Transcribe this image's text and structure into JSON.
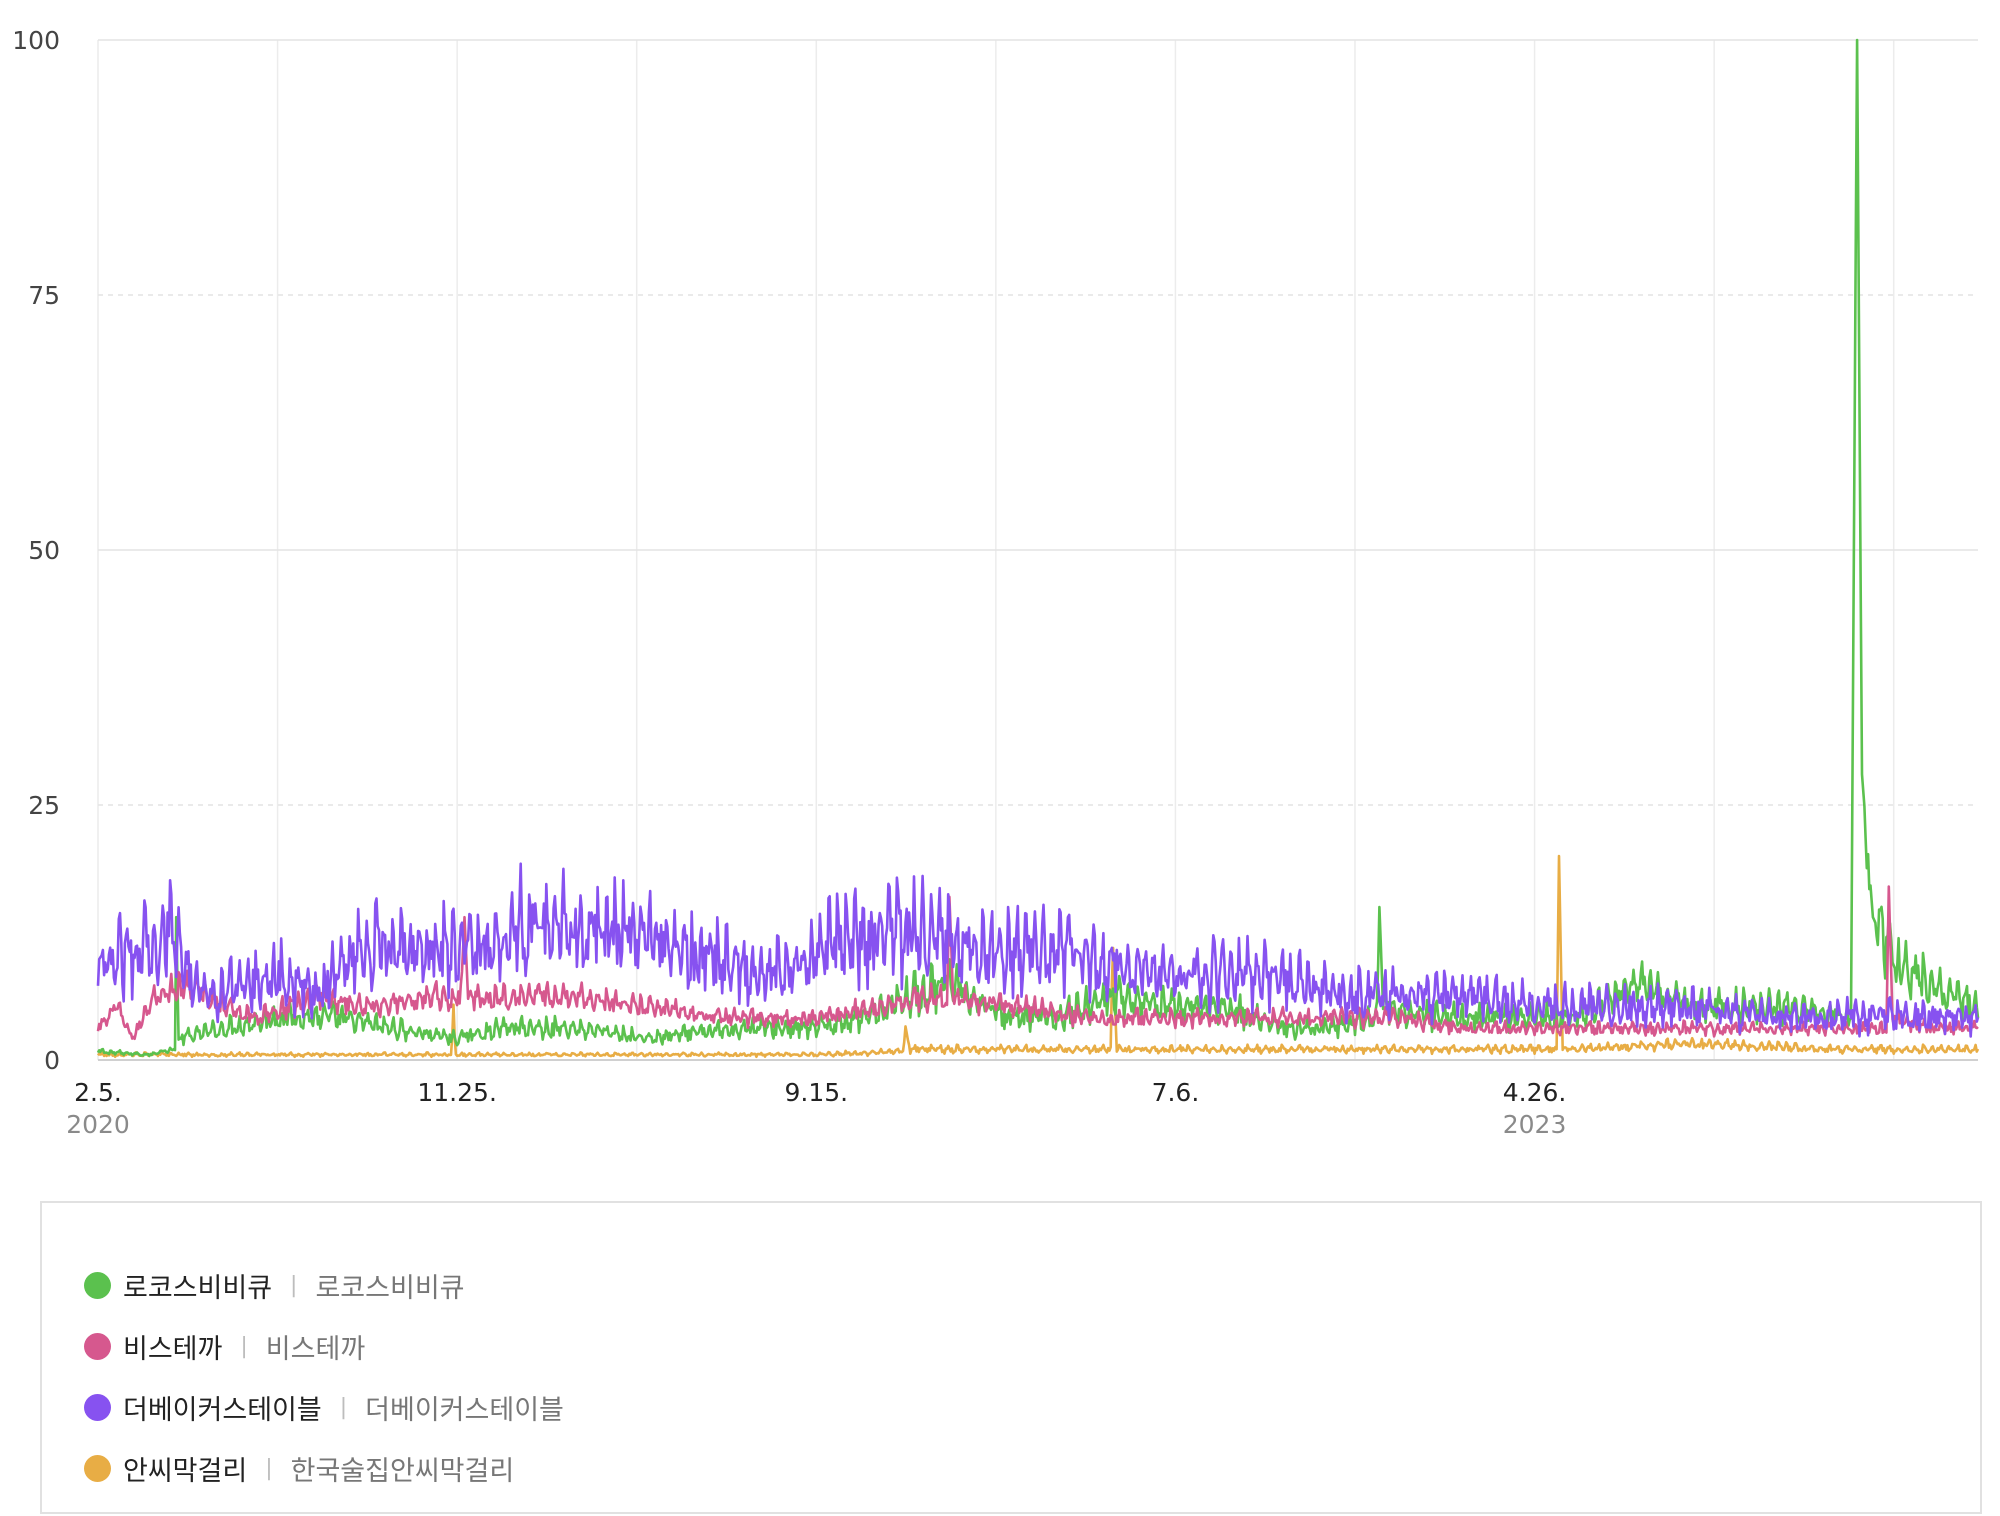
{
  "chart_data": {
    "type": "line",
    "ylim": [
      0,
      100
    ],
    "yticks": [
      "0",
      "25",
      "50",
      "75",
      "100"
    ],
    "xlim": [
      "2020-02-05",
      "2024-04-23"
    ],
    "xticks": [
      {
        "date": "2020-02-05",
        "label": "2.5.",
        "year": "2020"
      },
      {
        "date": "2020-11-25",
        "label": "11.25.",
        "year": ""
      },
      {
        "date": "2021-09-15",
        "label": "9.15.",
        "year": ""
      },
      {
        "date": "2022-07-06",
        "label": "7.6.",
        "year": ""
      },
      {
        "date": "2023-04-26",
        "label": "4.26.",
        "year": "2023"
      }
    ],
    "grid": true,
    "legend_position": "bottom",
    "series": [
      {
        "name": "로코스비비큐",
        "keyword": "로코스비비큐",
        "color": "#5bc14e",
        "points": [
          [
            "2020-02-05",
            0.8
          ],
          [
            "2020-03-15",
            0.5
          ],
          [
            "2020-04-08",
            1
          ],
          [
            "2020-04-09",
            14
          ],
          [
            "2020-04-11",
            2
          ],
          [
            "2020-05-20",
            3
          ],
          [
            "2020-07-01",
            4
          ],
          [
            "2020-08-15",
            4
          ],
          [
            "2020-10-01",
            3
          ],
          [
            "2020-11-25",
            2
          ],
          [
            "2021-01-01",
            3
          ],
          [
            "2021-03-01",
            3
          ],
          [
            "2021-05-01",
            2
          ],
          [
            "2021-07-15",
            3
          ],
          [
            "2021-09-15",
            3
          ],
          [
            "2021-10-20",
            4
          ],
          [
            "2021-12-01",
            6
          ],
          [
            "2022-01-01",
            7
          ],
          [
            "2022-02-15",
            4
          ],
          [
            "2022-04-01",
            4
          ],
          [
            "2022-05-15",
            6
          ],
          [
            "2022-07-06",
            5
          ],
          [
            "2022-08-15",
            5
          ],
          [
            "2022-10-01",
            3
          ],
          [
            "2022-11-20",
            3
          ],
          [
            "2022-12-18",
            4
          ],
          [
            "2022-12-20",
            15
          ],
          [
            "2022-12-23",
            5
          ],
          [
            "2023-02-01",
            4
          ],
          [
            "2023-04-01",
            4
          ],
          [
            "2023-06-01",
            4
          ],
          [
            "2023-07-25",
            7
          ],
          [
            "2023-09-01",
            5
          ],
          [
            "2023-11-15",
            5
          ],
          [
            "2024-01-10",
            4
          ],
          [
            "2024-01-15",
            100
          ],
          [
            "2024-01-19",
            28
          ],
          [
            "2024-01-28",
            14
          ],
          [
            "2024-02-15",
            9
          ],
          [
            "2024-03-01",
            8
          ],
          [
            "2024-04-01",
            6
          ],
          [
            "2024-04-23",
            5
          ]
        ]
      },
      {
        "name": "비스테까",
        "keyword": "비스테까",
        "color": "#d6588e",
        "points": [
          [
            "2020-02-05",
            3
          ],
          [
            "2020-02-20",
            5
          ],
          [
            "2020-03-05",
            2
          ],
          [
            "2020-03-20",
            6
          ],
          [
            "2020-04-20",
            7
          ],
          [
            "2020-05-20",
            5
          ],
          [
            "2020-06-15",
            4
          ],
          [
            "2020-08-01",
            6
          ],
          [
            "2020-09-15",
            5
          ],
          [
            "2020-11-01",
            6
          ],
          [
            "2020-11-28",
            6
          ],
          [
            "2020-12-01",
            14
          ],
          [
            "2020-12-04",
            6
          ],
          [
            "2021-01-15",
            6
          ],
          [
            "2021-03-01",
            6
          ],
          [
            "2021-05-01",
            5
          ],
          [
            "2021-07-01",
            4
          ],
          [
            "2021-09-15",
            4
          ],
          [
            "2021-11-01",
            5
          ],
          [
            "2021-12-15",
            6
          ],
          [
            "2021-12-31",
            6
          ],
          [
            "2022-01-02",
            16
          ],
          [
            "2022-01-05",
            6
          ],
          [
            "2022-03-01",
            5
          ],
          [
            "2022-05-01",
            4
          ],
          [
            "2022-07-06",
            4
          ],
          [
            "2022-09-01",
            4
          ],
          [
            "2022-11-01",
            4
          ],
          [
            "2023-01-01",
            4
          ],
          [
            "2023-03-01",
            3
          ],
          [
            "2023-05-01",
            3
          ],
          [
            "2023-07-01",
            3
          ],
          [
            "2023-09-01",
            3
          ],
          [
            "2023-11-01",
            3
          ],
          [
            "2024-01-01",
            3
          ],
          [
            "2024-02-08",
            3
          ],
          [
            "2024-02-10",
            17
          ],
          [
            "2024-02-13",
            4
          ],
          [
            "2024-03-15",
            3
          ],
          [
            "2024-04-23",
            3
          ]
        ]
      },
      {
        "name": "더베이커스테이블",
        "keyword": "더베이커스테이블",
        "color": "#8752f0",
        "points": [
          [
            "2020-02-05",
            8
          ],
          [
            "2020-03-01",
            10
          ],
          [
            "2020-04-01",
            12
          ],
          [
            "2020-05-01",
            6
          ],
          [
            "2020-06-01",
            7
          ],
          [
            "2020-07-01",
            8
          ],
          [
            "2020-08-01",
            6
          ],
          [
            "2020-09-01",
            10
          ],
          [
            "2020-10-01",
            11
          ],
          [
            "2020-11-25",
            10
          ],
          [
            "2021-01-01",
            12
          ],
          [
            "2021-02-01",
            13
          ],
          [
            "2021-03-01",
            12
          ],
          [
            "2021-04-01",
            12
          ],
          [
            "2021-05-01",
            11
          ],
          [
            "2021-07-01",
            9
          ],
          [
            "2021-08-15",
            8
          ],
          [
            "2021-09-15",
            10
          ],
          [
            "2021-10-15",
            11
          ],
          [
            "2021-12-01",
            12
          ],
          [
            "2022-01-01",
            11
          ],
          [
            "2022-02-01",
            10
          ],
          [
            "2022-04-01",
            10
          ],
          [
            "2022-05-01",
            9
          ],
          [
            "2022-07-06",
            8
          ],
          [
            "2022-09-01",
            8
          ],
          [
            "2022-10-15",
            7
          ],
          [
            "2022-11-15",
            6
          ],
          [
            "2023-01-01",
            6
          ],
          [
            "2023-03-01",
            6
          ],
          [
            "2023-05-01",
            5
          ],
          [
            "2023-07-01",
            5
          ],
          [
            "2023-09-01",
            5
          ],
          [
            "2023-11-01",
            4
          ],
          [
            "2024-01-01",
            4
          ],
          [
            "2024-03-01",
            4
          ],
          [
            "2024-04-23",
            4
          ]
        ]
      },
      {
        "name": "안씨막걸리",
        "keyword": "한국술집안씨막걸리",
        "color": "#e8ad45",
        "points": [
          [
            "2020-02-05",
            0.5
          ],
          [
            "2020-06-01",
            0.5
          ],
          [
            "2020-11-20",
            0.5
          ],
          [
            "2020-11-22",
            4
          ],
          [
            "2020-11-24",
            0.5
          ],
          [
            "2021-05-01",
            0.5
          ],
          [
            "2021-09-15",
            0.5
          ],
          [
            "2021-11-25",
            0.8
          ],
          [
            "2021-11-27",
            3
          ],
          [
            "2021-12-01",
            1
          ],
          [
            "2022-03-01",
            1
          ],
          [
            "2022-05-14",
            1
          ],
          [
            "2022-05-16",
            10
          ],
          [
            "2022-05-19",
            1
          ],
          [
            "2022-09-01",
            1
          ],
          [
            "2023-01-01",
            1
          ],
          [
            "2023-05-14",
            1
          ],
          [
            "2023-05-16",
            20
          ],
          [
            "2023-05-19",
            1
          ],
          [
            "2023-09-01",
            1.5
          ],
          [
            "2024-01-01",
            1
          ],
          [
            "2024-04-23",
            1
          ]
        ]
      }
    ]
  },
  "legend": [
    {
      "name": "로코스비비큐",
      "keyword": "로코스비비큐",
      "color": "#5bc14e"
    },
    {
      "name": "비스테까",
      "keyword": "비스테까",
      "color": "#d6588e"
    },
    {
      "name": "더베이커스테이블",
      "keyword": "더베이커스테이블",
      "color": "#8752f0"
    },
    {
      "name": "안씨막걸리",
      "keyword": "한국술집안씨막걸리",
      "color": "#e8ad45"
    }
  ]
}
